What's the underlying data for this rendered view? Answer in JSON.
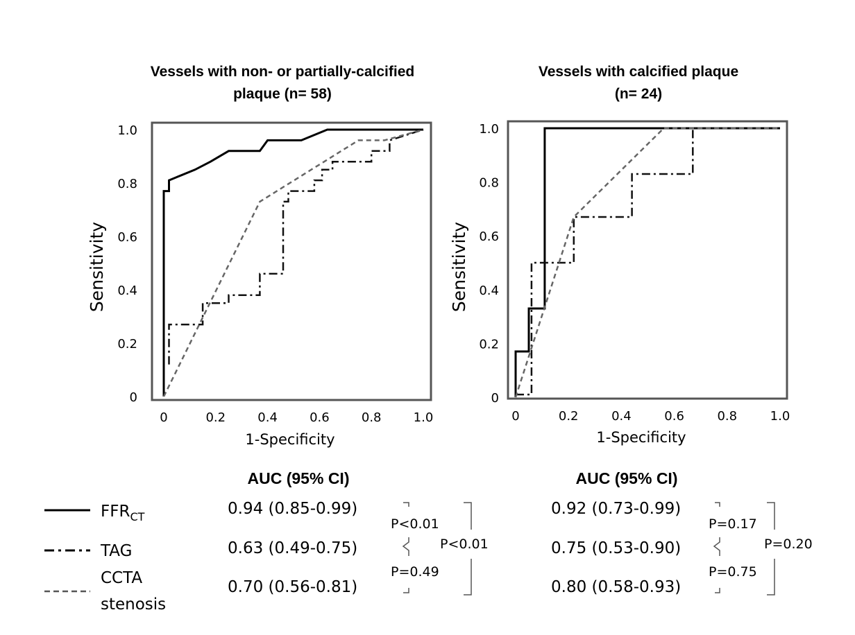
{
  "chart_data": [
    {
      "type": "line",
      "title": "Vessels with non- or partially-calcified plaque (n= 58)",
      "title_lines": [
        "Vessels with non- or partially-calcified",
        "plaque (n= 58)"
      ],
      "xlabel": "1-Specificity",
      "ylabel": "Sensitivity",
      "xlim": [
        0,
        1
      ],
      "ylim": [
        0,
        1
      ],
      "xticks": [
        0,
        0.2,
        0.4,
        0.6,
        0.8,
        1.0
      ],
      "xtick_labels": [
        "0",
        "0.2",
        "0.4",
        "0.6",
        "0.8",
        "1.0"
      ],
      "yticks": [
        0,
        0.2,
        0.4,
        0.6,
        0.8,
        1.0
      ],
      "ytick_labels": [
        "0",
        "0.2",
        "0.4",
        "0.6",
        "0.8",
        "1.0"
      ],
      "grid": false,
      "series": [
        {
          "name": "FFRCT",
          "style": "solid",
          "x": [
            0,
            0,
            0.02,
            0.02,
            0.12,
            0.18,
            0.25,
            0.37,
            0.4,
            0.53,
            0.63,
            0.64,
            0.71,
            0.96,
            1.0
          ],
          "y": [
            0,
            0.77,
            0.77,
            0.81,
            0.85,
            0.88,
            0.92,
            0.92,
            0.96,
            0.96,
            1.0,
            1.0,
            1.0,
            1.0,
            1.0
          ]
        },
        {
          "name": "TAG",
          "style": "dashdot",
          "x": [
            0.02,
            0.02,
            0.15,
            0.15,
            0.25,
            0.25,
            0.37,
            0.37,
            0.46,
            0.46,
            0.48,
            0.48,
            0.53,
            0.53,
            0.58,
            0.58,
            0.61,
            0.61,
            0.65,
            0.65,
            0.8,
            0.8,
            0.87,
            0.87,
            1.0
          ],
          "y": [
            0.12,
            0.27,
            0.27,
            0.35,
            0.35,
            0.38,
            0.38,
            0.46,
            0.46,
            0.73,
            0.73,
            0.77,
            0.77,
            0.77,
            0.77,
            0.81,
            0.81,
            0.85,
            0.85,
            0.88,
            0.88,
            0.92,
            0.92,
            0.96,
            1.0
          ]
        },
        {
          "name": "CCTA stenosis",
          "style": "dashed",
          "x": [
            0,
            0.37,
            0.75,
            0.85,
            1.0
          ],
          "y": [
            0,
            0.73,
            0.96,
            0.96,
            1.0
          ]
        }
      ],
      "auc_header": "AUC (95% CI)",
      "auc": [
        "0.94 (0.85-0.99)",
        "0.63 (0.49-0.75)",
        "0.70 (0.56-0.81)"
      ],
      "pvalues": {
        "ffrct_vs_tag": "P<0.01",
        "tag_vs_ccta": "P=0.49",
        "ffrct_vs_ccta": "P<0.01"
      }
    },
    {
      "type": "line",
      "title": "Vessels with calcified plaque (n= 24)",
      "title_lines": [
        "Vessels with calcified plaque",
        "(n= 24)"
      ],
      "xlabel": "1-Specificity",
      "ylabel": "Sensitivity",
      "xlim": [
        0,
        1
      ],
      "ylim": [
        0,
        1
      ],
      "xticks": [
        0,
        0.2,
        0.4,
        0.6,
        0.8,
        1.0
      ],
      "xtick_labels": [
        "0",
        "0.2",
        "0.4",
        "0.6",
        "0.8",
        "1.0"
      ],
      "yticks": [
        0,
        0.2,
        0.4,
        0.6,
        0.8,
        1.0
      ],
      "ytick_labels": [
        "0",
        "0.2",
        "0.4",
        "0.6",
        "0.8",
        "1.0"
      ],
      "grid": false,
      "series": [
        {
          "name": "FFRCT",
          "style": "solid",
          "x": [
            0,
            0,
            0.05,
            0.05,
            0.11,
            0.11,
            1.0
          ],
          "y": [
            0,
            0.17,
            0.17,
            0.33,
            0.33,
            1.0,
            1.0
          ]
        },
        {
          "name": "TAG",
          "style": "dashdot",
          "x": [
            0,
            0.06,
            0.06,
            0.22,
            0.22,
            0.44,
            0.44,
            0.67,
            0.67,
            1.0
          ],
          "y": [
            0.01,
            0.01,
            0.5,
            0.5,
            0.67,
            0.67,
            0.83,
            0.83,
            1.0,
            1.0
          ]
        },
        {
          "name": "CCTA stenosis",
          "style": "dashed",
          "x": [
            0,
            0.22,
            0.56,
            1.0
          ],
          "y": [
            0,
            0.67,
            1.0,
            1.0
          ]
        }
      ],
      "auc_header": "AUC (95% CI)",
      "auc": [
        "0.92 (0.73-0.99)",
        "0.75 (0.53-0.90)",
        "0.80 (0.58-0.93)"
      ],
      "pvalues": {
        "ffrct_vs_tag": "P=0.17",
        "tag_vs_ccta": "P=0.75",
        "ffrct_vs_ccta": "P=0.20"
      }
    }
  ],
  "legend": {
    "ffrct_main": "FFR",
    "ffrct_sub": "CT",
    "tag": "TAG",
    "ccta_line1": "CCTA",
    "ccta_line2": "stenosis"
  }
}
